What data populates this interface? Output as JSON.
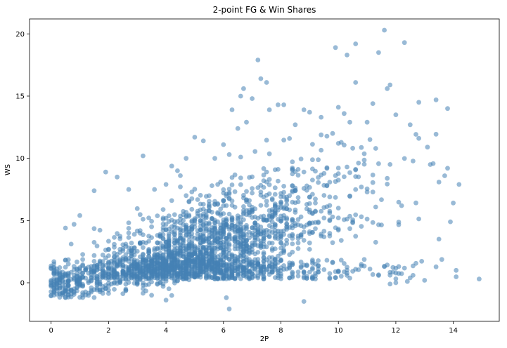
{
  "chart_data": {
    "type": "scatter",
    "title": "2-point FG & Win Shares",
    "xlabel": "2P",
    "ylabel": "WS",
    "xlim": [
      -0.75,
      15.6
    ],
    "ylim": [
      -3.1,
      21.2
    ],
    "xticks": [
      0,
      2,
      4,
      6,
      8,
      10,
      12,
      14
    ],
    "yticks": [
      0,
      5,
      10,
      15,
      20
    ],
    "xtick_labels": [
      "0",
      "2",
      "4",
      "6",
      "8",
      "10",
      "12",
      "14"
    ],
    "ytick_labels": [
      "0",
      "5",
      "10",
      "15",
      "20"
    ],
    "grid": false,
    "legend": "none",
    "marker_color": "#4682b4",
    "marker_opacity": 0.55,
    "n_points_approx": 2600,
    "points_note": "Highlighted outlier points read from the figure; the dense cloud is rendered procedurally from the same distribution.",
    "series": [
      {
        "values": [
          [
            0.0,
            0.0
          ],
          [
            0.0,
            -0.3
          ],
          [
            0.0,
            0.2
          ],
          [
            0.1,
            1.7
          ],
          [
            0.4,
            0.1
          ],
          [
            0.5,
            4.4
          ],
          [
            0.8,
            4.7
          ],
          [
            1.0,
            5.4
          ],
          [
            1.5,
            7.4
          ],
          [
            1.9,
            8.9
          ],
          [
            2.3,
            8.5
          ],
          [
            2.7,
            7.5
          ],
          [
            3.2,
            10.2
          ],
          [
            3.6,
            7.5
          ],
          [
            4.0,
            7.9
          ],
          [
            4.4,
            9.0
          ],
          [
            4.7,
            10.0
          ],
          [
            5.0,
            11.7
          ],
          [
            5.3,
            11.4
          ],
          [
            5.7,
            10.0
          ],
          [
            6.0,
            11.1
          ],
          [
            6.2,
            10.3
          ],
          [
            6.3,
            13.9
          ],
          [
            6.5,
            12.4
          ],
          [
            6.6,
            15.0
          ],
          [
            6.7,
            15.6
          ],
          [
            6.8,
            12.9
          ],
          [
            7.0,
            14.8
          ],
          [
            7.2,
            17.9
          ],
          [
            7.3,
            16.4
          ],
          [
            7.5,
            16.1
          ],
          [
            7.6,
            13.9
          ],
          [
            7.9,
            14.3
          ],
          [
            8.1,
            14.3
          ],
          [
            8.5,
            12.7
          ],
          [
            8.8,
            13.9
          ],
          [
            9.0,
            13.7
          ],
          [
            9.4,
            13.3
          ],
          [
            9.8,
            12.0
          ],
          [
            9.9,
            18.9
          ],
          [
            10.0,
            14.1
          ],
          [
            10.2,
            13.6
          ],
          [
            10.3,
            18.3
          ],
          [
            10.4,
            12.9
          ],
          [
            10.6,
            19.2
          ],
          [
            10.6,
            16.1
          ],
          [
            11.0,
            12.9
          ],
          [
            11.2,
            14.4
          ],
          [
            11.4,
            18.5
          ],
          [
            11.6,
            20.3
          ],
          [
            11.7,
            15.6
          ],
          [
            11.8,
            15.9
          ],
          [
            12.0,
            13.5
          ],
          [
            12.3,
            19.3
          ],
          [
            12.5,
            12.7
          ],
          [
            12.8,
            14.5
          ],
          [
            13.1,
            10.9
          ],
          [
            13.4,
            14.7
          ],
          [
            13.8,
            14.0
          ],
          [
            14.2,
            7.9
          ],
          [
            13.9,
            4.9
          ],
          [
            14.1,
            1.0
          ],
          [
            14.9,
            0.3
          ],
          [
            13.0,
            0.2
          ],
          [
            12.4,
            0.1
          ],
          [
            11.8,
            -0.1
          ],
          [
            6.2,
            -2.1
          ],
          [
            6.1,
            -1.2
          ],
          [
            8.8,
            -1.5
          ],
          [
            4.0,
            -1.4
          ],
          [
            3.5,
            -1.0
          ],
          [
            12.0,
            0.0
          ],
          [
            12.6,
            0.6
          ],
          [
            13.5,
            3.5
          ],
          [
            13.7,
            8.6
          ],
          [
            13.8,
            9.2
          ],
          [
            13.2,
            9.5
          ],
          [
            11.3,
            10.8
          ]
        ]
      }
    ]
  }
}
